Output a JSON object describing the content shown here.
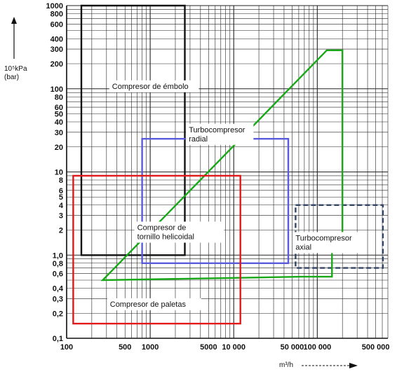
{
  "chart_data": {
    "type": "line",
    "title": "",
    "xscale": "log",
    "yscale": "log",
    "xlim": [
      100,
      700000
    ],
    "ylim": [
      0.1,
      1000
    ],
    "xlabel": "m³/h",
    "ylabel_line1": "10⁵kPa",
    "ylabel_line2": "(bar)",
    "x_ticks": [
      {
        "value": 100,
        "label": "100"
      },
      {
        "value": 500,
        "label": "500"
      },
      {
        "value": 1000,
        "label": "1000"
      },
      {
        "value": 5000,
        "label": "5000"
      },
      {
        "value": 10000,
        "label": "10 000"
      },
      {
        "value": 50000,
        "label": "50 000"
      },
      {
        "value": 100000,
        "label": "100 000"
      },
      {
        "value": 500000,
        "label": "500 000"
      }
    ],
    "y_ticks": [
      {
        "value": 1000,
        "label": "1000"
      },
      {
        "value": 800,
        "label": "800"
      },
      {
        "value": 600,
        "label": "600"
      },
      {
        "value": 400,
        "label": "400"
      },
      {
        "value": 300,
        "label": "300"
      },
      {
        "value": 200,
        "label": "200"
      },
      {
        "value": 100,
        "label": "100"
      },
      {
        "value": 80,
        "label": "80"
      },
      {
        "value": 60,
        "label": "60"
      },
      {
        "value": 50,
        "label": "50"
      },
      {
        "value": 40,
        "label": "40"
      },
      {
        "value": 30,
        "label": "30"
      },
      {
        "value": 20,
        "label": "20"
      },
      {
        "value": 10,
        "label": "10"
      },
      {
        "value": 8,
        "label": "8"
      },
      {
        "value": 6,
        "label": "6"
      },
      {
        "value": 5,
        "label": "5"
      },
      {
        "value": 4,
        "label": "4"
      },
      {
        "value": 3,
        "label": "3"
      },
      {
        "value": 2,
        "label": "2"
      },
      {
        "value": 1,
        "label": "1,0"
      },
      {
        "value": 0.8,
        "label": "0,8"
      },
      {
        "value": 0.6,
        "label": "0,6"
      },
      {
        "value": 0.4,
        "label": "0,4"
      },
      {
        "value": 0.3,
        "label": "0,3"
      },
      {
        "value": 0.2,
        "label": "0,2"
      },
      {
        "value": 0.1,
        "label": "0,1"
      }
    ],
    "regions": [
      {
        "key": "embolo",
        "label": "Compresor de émbolo",
        "color": "#111111",
        "polygon": [
          [
            150,
            1000
          ],
          [
            2600,
            1000
          ],
          [
            2600,
            1.0
          ],
          [
            150,
            1.0
          ]
        ],
        "label_at": [
          350,
          100
        ]
      },
      {
        "key": "radial",
        "label_lines": [
          "Turbocompresor",
          "radial"
        ],
        "color": "#5a5adc",
        "polygon": [
          [
            800,
            25
          ],
          [
            45000,
            25
          ],
          [
            45000,
            0.8
          ],
          [
            800,
            0.8
          ]
        ],
        "label_at": [
          2900,
          30
        ]
      },
      {
        "key": "axial",
        "label_lines": [
          "Turbocompresor",
          "axial"
        ],
        "color": "#334466",
        "dashed": true,
        "polygon": [
          [
            55000,
            4
          ],
          [
            610000,
            4
          ],
          [
            610000,
            0.7
          ],
          [
            55000,
            0.7
          ]
        ],
        "label_at": [
          55000,
          1.5
        ]
      },
      {
        "key": "tornillo",
        "label_lines": [
          "Compresor de",
          "tornillo helicoidal"
        ],
        "color": "#18a818",
        "polygon": [
          [
            270,
            0.5
          ],
          [
            130000,
            290
          ],
          [
            200000,
            290
          ],
          [
            200000,
            1.8
          ],
          [
            150000,
            1.8
          ],
          [
            150000,
            0.55
          ],
          [
            65000,
            0.55
          ]
        ],
        "label_at": [
          700,
          2.0
        ]
      },
      {
        "key": "paletas",
        "label": "Compresor de paletas",
        "color": "#e01818",
        "polygon": [
          [
            120,
            9
          ],
          [
            12000,
            9
          ],
          [
            12000,
            0.15
          ],
          [
            120,
            0.15
          ]
        ],
        "label_at": [
          330,
          0.24
        ]
      }
    ]
  }
}
